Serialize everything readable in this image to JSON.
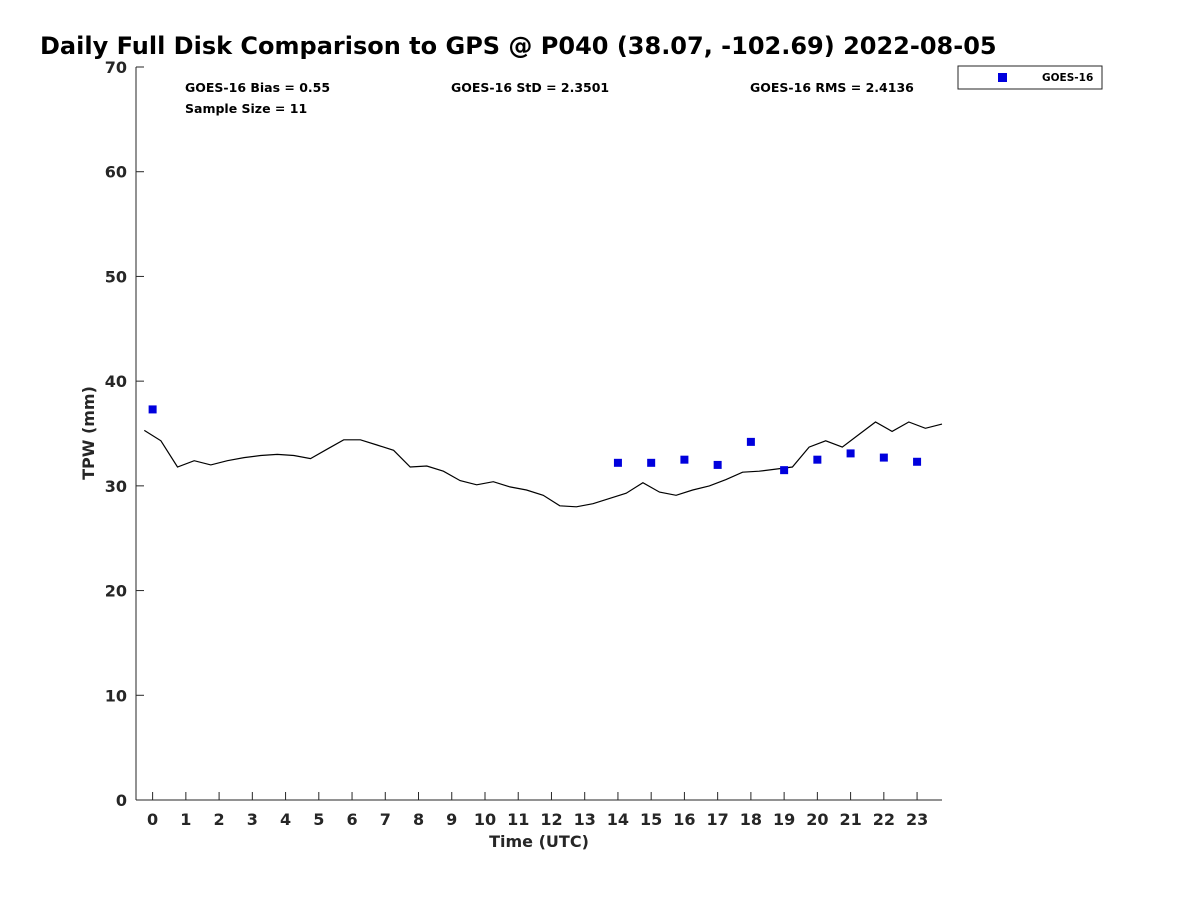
{
  "chart_data": {
    "type": "scatter",
    "title": "Daily Full Disk Comparison to GPS @ P040 (38.07, -102.69) 2022-08-05",
    "xlabel": "Time (UTC)",
    "ylabel": "TPW (mm)",
    "xlim": [
      -0.5,
      23.75
    ],
    "ylim": [
      0,
      70
    ],
    "x_ticks": [
      0,
      1,
      2,
      3,
      4,
      5,
      6,
      7,
      8,
      9,
      10,
      11,
      12,
      13,
      14,
      15,
      16,
      17,
      18,
      19,
      20,
      21,
      22,
      23
    ],
    "y_ticks": [
      0,
      10,
      20,
      30,
      40,
      50,
      60,
      70
    ],
    "grid": false,
    "legend_position": "top-right, outside plot",
    "stats": {
      "bias": "GOES-16 Bias = 0.55",
      "std": "GOES-16 StD = 2.3501",
      "rms": "GOES-16 RMS = 2.4136",
      "sample": "Sample Size = 11"
    },
    "series": [
      {
        "name": "GOES-16",
        "kind": "scatter",
        "marker": "square",
        "color": "#0000dd",
        "x": [
          0,
          14,
          15,
          16,
          17,
          18,
          19,
          20,
          21,
          22,
          23
        ],
        "y": [
          37.3,
          32.2,
          32.2,
          32.5,
          32.0,
          34.2,
          31.5,
          32.5,
          33.1,
          32.7,
          32.3
        ]
      },
      {
        "kind": "line",
        "color": "#000000",
        "x": [
          -0.25,
          0.25,
          0.75,
          1.25,
          1.75,
          2.25,
          2.75,
          3.25,
          3.75,
          4.25,
          4.75,
          5.25,
          5.75,
          6.25,
          6.75,
          7.25,
          7.75,
          8.25,
          8.75,
          9.25,
          9.75,
          10.25,
          10.75,
          11.25,
          11.75,
          12.25,
          12.75,
          13.25,
          13.75,
          14.25,
          14.75,
          15.25,
          15.75,
          16.25,
          16.75,
          17.25,
          17.75,
          18.25,
          18.75,
          19.25,
          19.75,
          20.25,
          20.75,
          21.25,
          21.75,
          22.25,
          22.75,
          23.25,
          23.75
        ],
        "y": [
          35.3,
          34.3,
          31.8,
          32.4,
          32.0,
          32.4,
          32.7,
          32.9,
          33.0,
          32.9,
          32.6,
          33.5,
          34.4,
          34.4,
          33.9,
          33.4,
          31.8,
          31.9,
          31.4,
          30.5,
          30.1,
          30.4,
          29.9,
          29.6,
          29.1,
          28.1,
          28.0,
          28.3,
          28.8,
          29.3,
          30.3,
          29.4,
          29.1,
          29.6,
          30.0,
          30.6,
          31.3,
          31.4,
          31.6,
          31.8,
          33.7,
          34.3,
          33.7,
          34.9,
          36.1,
          35.2,
          36.1,
          35.5,
          35.9
        ]
      }
    ]
  }
}
